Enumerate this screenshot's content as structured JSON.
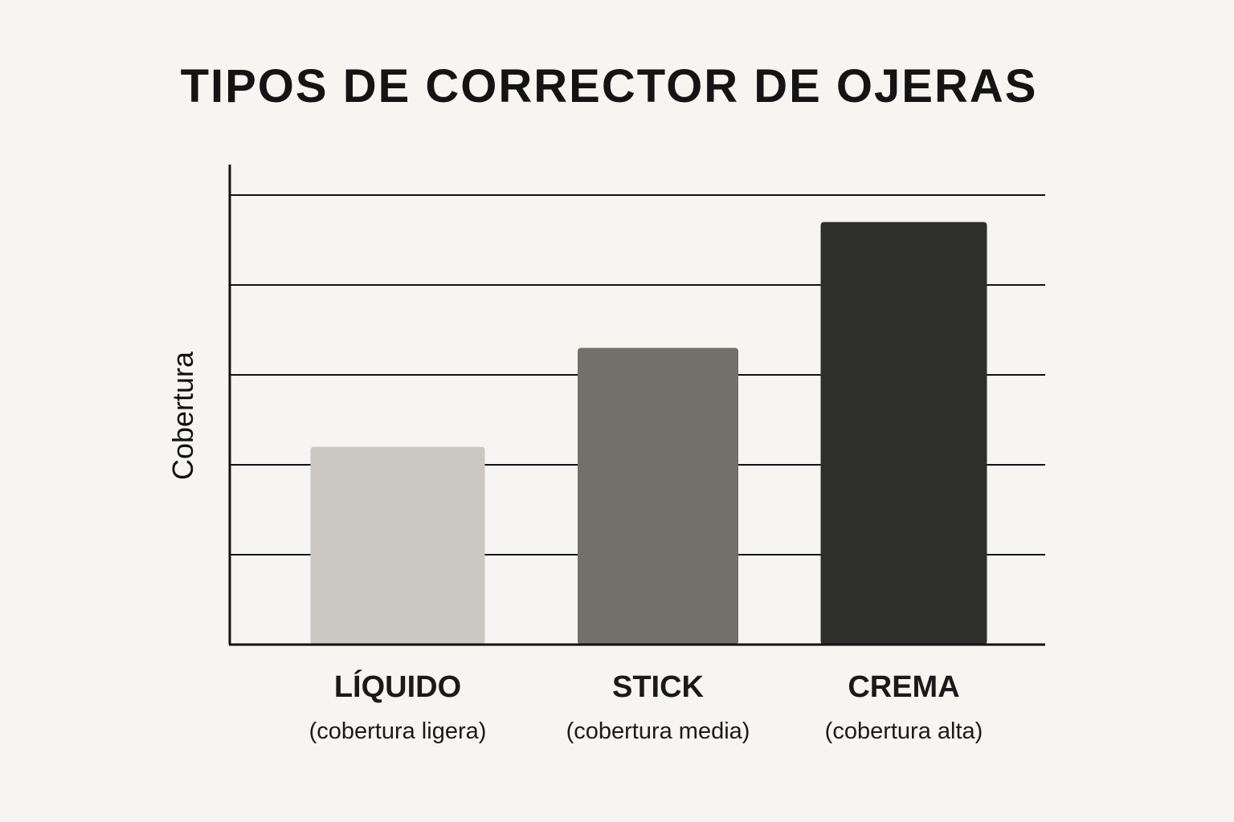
{
  "chart_data": {
    "type": "bar",
    "title": "TIPOS DE CORRECTOR DE OJERAS",
    "ylabel": "Cobertura",
    "xlabel": "",
    "categories": [
      "LÍQUIDO",
      "STICK",
      "CREMA"
    ],
    "category_subtitles": [
      "(cobertura ligera)",
      "(cobertura media)",
      "(cobertura alta)"
    ],
    "values": [
      2.2,
      3.3,
      4.7
    ],
    "ylim": [
      0,
      5
    ],
    "grid": true,
    "bar_colors": [
      "#cbc8c2",
      "#72706b",
      "#2e2e2d"
    ]
  }
}
